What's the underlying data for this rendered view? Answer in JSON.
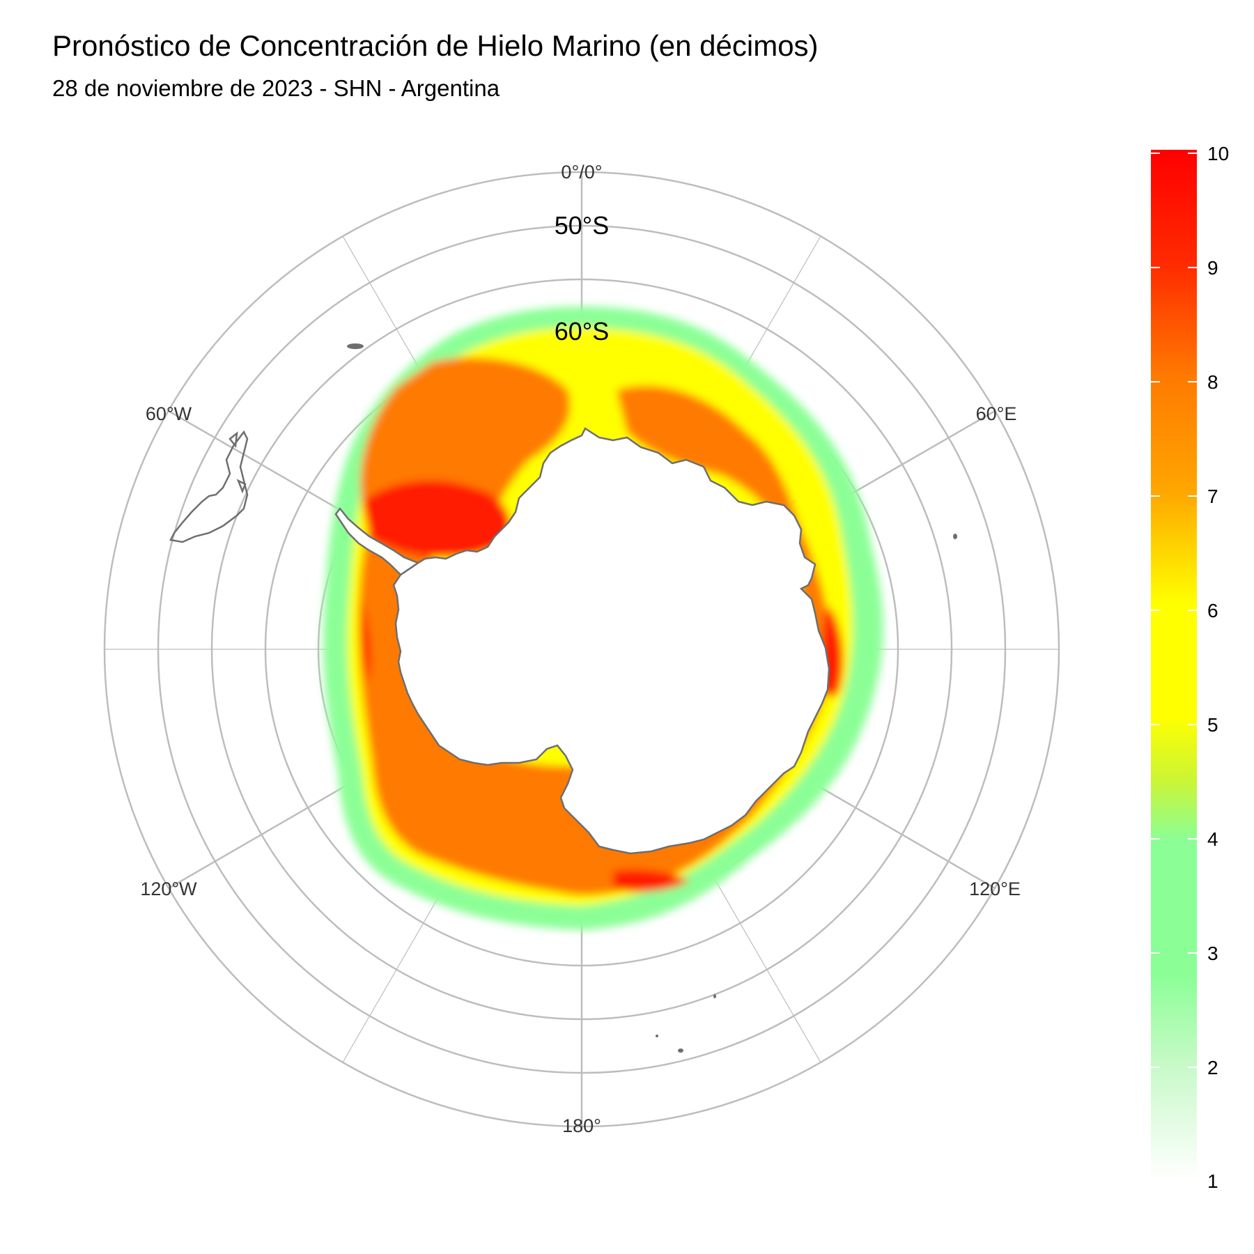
{
  "title": "Pronóstico de Concentración de Hielo Marino (en décimos)",
  "subtitle": "28 de noviembre de 2023 - SHN - Argentina",
  "map": {
    "projection": "south polar stereographic",
    "meridian_labels": [
      {
        "label": "0°/0°",
        "lon": 0
      },
      {
        "label": "60°E",
        "lon": 60
      },
      {
        "label": "120°E",
        "lon": 120
      },
      {
        "label": "180°",
        "lon": 180
      },
      {
        "label": "120°W",
        "lon": -120
      },
      {
        "label": "60°W",
        "lon": -60
      }
    ],
    "parallel_labels": [
      {
        "label": "50°S",
        "lat": -50
      },
      {
        "label": "60°S",
        "lat": -60
      }
    ],
    "meridians_every_deg": 30,
    "parallels_deg": [
      -40,
      -45,
      -50,
      -55,
      -60,
      -65
    ],
    "grid_color": "#bdbdbd",
    "coastline_color": "#6e6e6e"
  },
  "colorbar": {
    "ticks": [
      "10",
      "9",
      "8",
      "7",
      "6",
      "5",
      "4",
      "3",
      "2",
      "1"
    ],
    "min": 1,
    "max": 10,
    "colors": {
      "1": "#ffffff",
      "2": "#9cf59c",
      "3": "#86fe99",
      "4": "#8bff96",
      "4.5": "#ccf533",
      "5": "#ffff00",
      "6": "#ffff00",
      "7": "#ffa500",
      "8": "#ff7a00",
      "9": "#ff2a00",
      "10": "#ff0000"
    }
  },
  "ice_colors": {
    "low": "#8bff96",
    "mid": "#ffff00",
    "high": "#ff7a00",
    "max": "#ff0000"
  }
}
